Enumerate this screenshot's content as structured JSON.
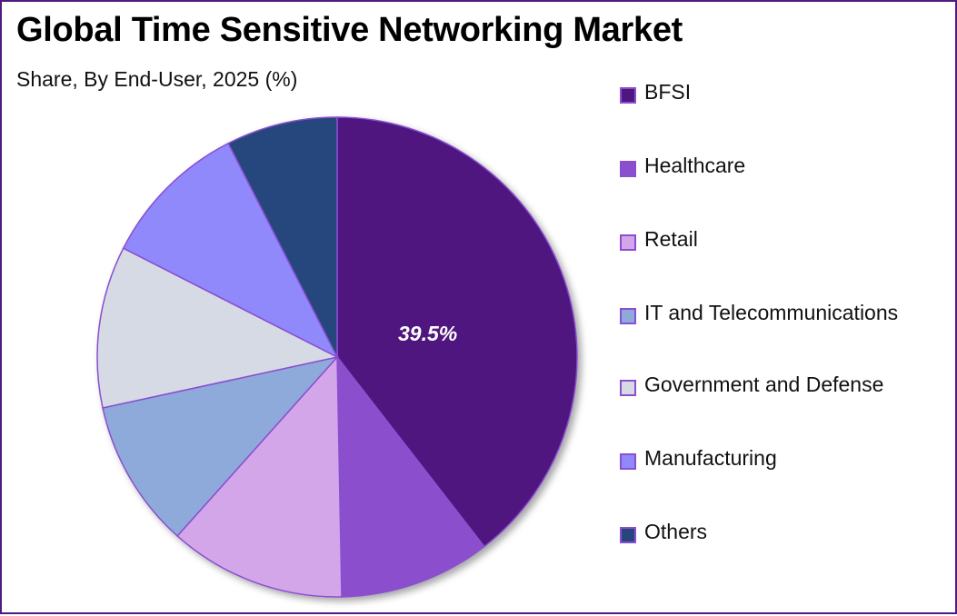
{
  "header": {
    "title": "Global Time Sensitive Networking Market",
    "subtitle": "Share, By End-User, 2025 (%)"
  },
  "pie": {
    "highlight_label": "39.5%"
  },
  "legend": {
    "items": [
      {
        "label": "BFSI",
        "color": "#4f1680"
      },
      {
        "label": "Healthcare",
        "color": "#8b4fce"
      },
      {
        "label": "Retail",
        "color": "#d3a6ea"
      },
      {
        "label": "IT and Telecommunications",
        "color": "#8eaadb"
      },
      {
        "label": "Government and Defense",
        "color": "#d5dae5"
      },
      {
        "label": "Manufacturing",
        "color": "#8f89fc"
      },
      {
        "label": "Others",
        "color": "#27467e"
      }
    ]
  },
  "chart_data": {
    "type": "pie",
    "title": "Global Time Sensitive Networking Market",
    "subtitle": "Share, By End-User, 2025 (%)",
    "categories": [
      "BFSI",
      "Healthcare",
      "Retail",
      "IT and Telecommunications",
      "Government and Defense",
      "Manufacturing",
      "Others"
    ],
    "values": [
      39.5,
      10.2,
      11.9,
      10.0,
      10.9,
      10.0,
      7.5
    ],
    "colors": [
      "#4f1680",
      "#8b4fce",
      "#d3a6ea",
      "#8eaadb",
      "#d5dae5",
      "#8f89fc",
      "#27467e"
    ],
    "data_labels": {
      "BFSI": "39.5%"
    },
    "legend_position": "right",
    "start_angle": "12 o'clock, clockwise"
  }
}
